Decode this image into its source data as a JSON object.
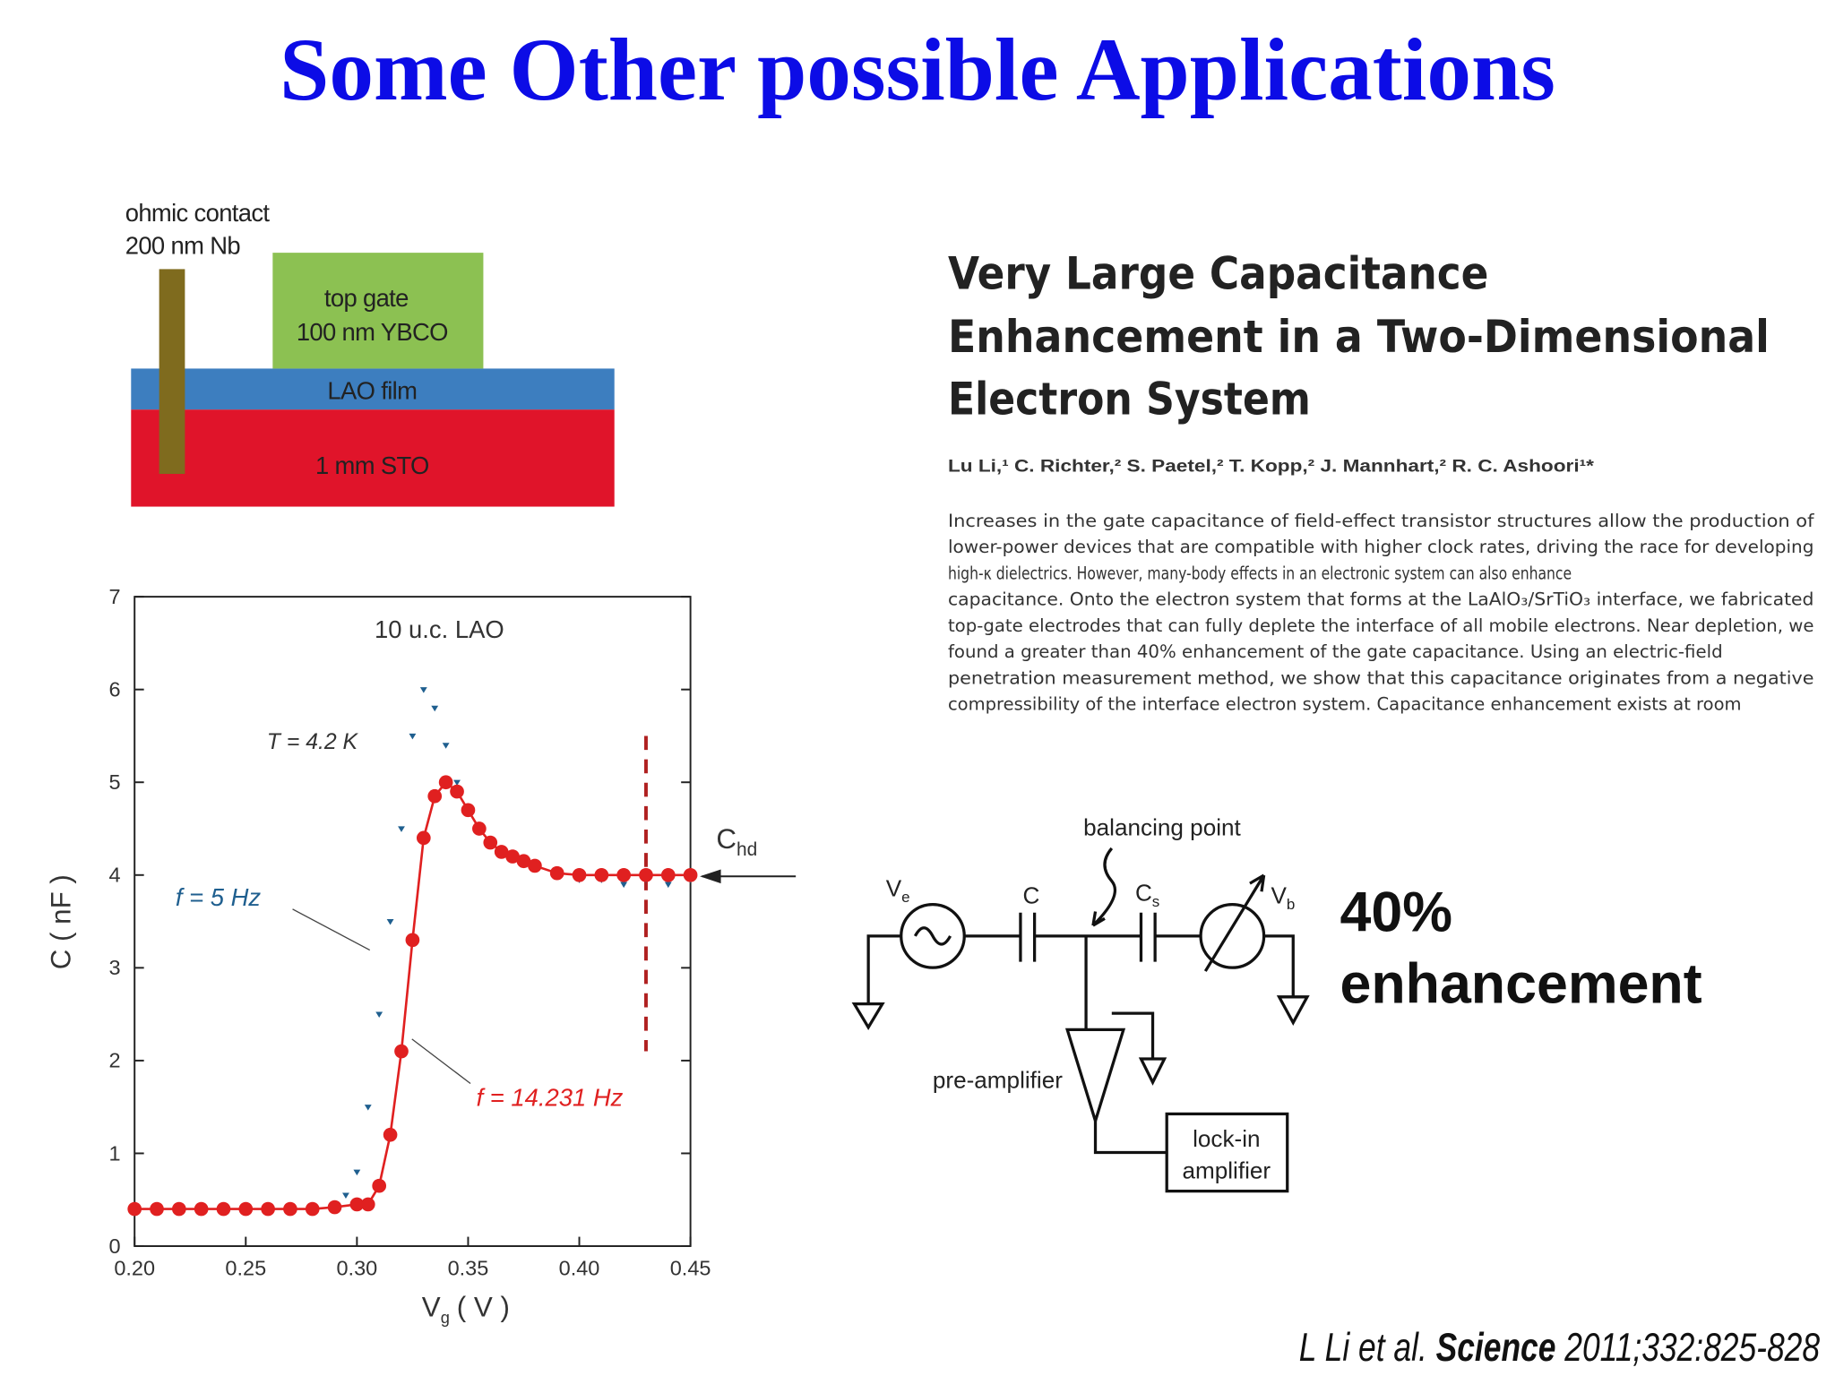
{
  "title": "Some Other possible Applications",
  "device": {
    "contact": [
      "ohmic contact",
      "200 nm Nb"
    ],
    "gate": [
      "top gate",
      "100 nm YBCO"
    ],
    "film": "LAO film",
    "substrate": "1 mm STO"
  },
  "paper": {
    "title": [
      "Very Large Capacitance",
      "Enhancement in a Two-Dimensional",
      "Electron System"
    ],
    "authors": "Lu Li,¹ C. Richter,² S. Paetel,² T. Kopp,² J. Mannhart,² R. C. Ashoori¹*",
    "abstract": [
      "Increases in the gate capacitance of field-effect transistor structures allow the production of",
      "lower-power devices that are compatible with higher clock rates, driving the race for developing",
      "high-κ dielectrics. However, many-body effects in an electronic system can also enhance",
      "capacitance. Onto the electron system that forms at the LaAlO₃/SrTiO₃ interface, we fabricated",
      "top-gate electrodes that can fully deplete the interface of all mobile electrons. Near depletion, we",
      "found a greater than 40% enhancement of the gate capacitance. Using an electric-field",
      "penetration measurement method, we show that this capacitance originates from a negative",
      "compressibility of the interface electron system. Capacitance enhancement exists at room"
    ]
  },
  "circuit": {
    "balancing": "balancing point",
    "source": "V",
    "source_sub": "e",
    "cap": "C",
    "cap_s": "C",
    "cap_s_sub": "s",
    "meter": "V",
    "meter_sub": "b",
    "preamp": "pre-amplifier",
    "lockin": [
      "lock-in",
      "amplifier"
    ]
  },
  "callout": [
    "40%",
    "enhancement"
  ],
  "citation": {
    "authors": "L Li et al.",
    "journal": "Science",
    "ref": "2011;332:825-828"
  },
  "chart_data": {
    "type": "scatter",
    "xlabel": "V",
    "xlabel_sub": "g",
    "xlabel_unit": "( V )",
    "ylabel": "C ( nF )",
    "annotations": {
      "sample": "10 u.c. LAO",
      "temperature": "T = 4.2 K",
      "c_label": "C",
      "c_sub": "hd"
    },
    "xlim": [
      0.2,
      0.45
    ],
    "ylim": [
      0,
      7
    ],
    "xticks": [
      {
        "value": 0.2,
        "label": "0.20"
      },
      0.25,
      {
        "value": 0.3,
        "label": "0.30"
      },
      0.35,
      {
        "value": 0.4,
        "label": "0.40"
      },
      0.45
    ],
    "yticks": [
      0,
      1,
      2,
      3,
      4,
      5,
      6,
      7
    ],
    "vline_x": 0.43,
    "grid": false,
    "series": [
      {
        "name": "f = 5 Hz",
        "color": "#1f5f8f",
        "marker": "triangle",
        "x": [
          0.2,
          0.21,
          0.22,
          0.23,
          0.24,
          0.25,
          0.26,
          0.27,
          0.28,
          0.29,
          0.295,
          0.3,
          0.305,
          0.31,
          0.315,
          0.32,
          0.325,
          0.33,
          0.335,
          0.34,
          0.345,
          0.35,
          0.355,
          0.36,
          0.37,
          0.38,
          0.39,
          0.4,
          0.41,
          0.42,
          0.43,
          0.44,
          0.45
        ],
        "values": [
          0.4,
          0.4,
          0.4,
          0.4,
          0.4,
          0.4,
          0.4,
          0.4,
          0.4,
          0.45,
          0.55,
          0.8,
          1.5,
          2.5,
          3.5,
          4.5,
          5.5,
          6.0,
          5.8,
          5.4,
          5.0,
          4.7,
          4.5,
          4.35,
          4.2,
          4.1,
          4.0,
          3.95,
          3.95,
          3.9,
          3.95,
          3.9,
          3.95
        ]
      },
      {
        "name": "f = 14.231 Hz",
        "color": "#e02020",
        "marker": "circle",
        "line": true,
        "x": [
          0.2,
          0.21,
          0.22,
          0.23,
          0.24,
          0.25,
          0.26,
          0.27,
          0.28,
          0.29,
          0.3,
          0.305,
          0.31,
          0.315,
          0.32,
          0.325,
          0.33,
          0.335,
          0.34,
          0.345,
          0.35,
          0.355,
          0.36,
          0.365,
          0.37,
          0.375,
          0.38,
          0.39,
          0.4,
          0.41,
          0.42,
          0.43,
          0.44,
          0.45
        ],
        "values": [
          0.4,
          0.4,
          0.4,
          0.4,
          0.4,
          0.4,
          0.4,
          0.4,
          0.4,
          0.42,
          0.45,
          0.45,
          0.65,
          1.2,
          2.1,
          3.3,
          4.4,
          4.85,
          5.0,
          4.9,
          4.7,
          4.5,
          4.35,
          4.25,
          4.2,
          4.15,
          4.1,
          4.02,
          4.0,
          4.0,
          4.0,
          4.0,
          4.0,
          4.0
        ]
      }
    ]
  }
}
